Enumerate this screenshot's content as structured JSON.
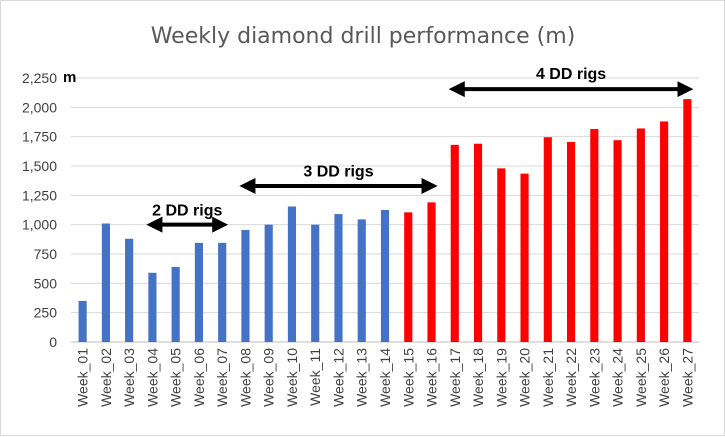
{
  "chart_data": {
    "type": "bar",
    "title": "Weekly diamond drill performance (m)",
    "y_unit_label": "m",
    "ylim": [
      0,
      2250
    ],
    "yticks": [
      0,
      250,
      500,
      750,
      1000,
      1250,
      1500,
      1750,
      2000,
      2250
    ],
    "ytick_labels": [
      "0",
      "250",
      "500",
      "750",
      "1,000",
      "1,250",
      "1,500",
      "1,750",
      "2,000",
      "2,250"
    ],
    "grid": true,
    "categories": [
      "Week_01",
      "Week_02",
      "Week_03",
      "Week_04",
      "Week_05",
      "Week_06",
      "Week_07",
      "Week_08",
      "Week_09",
      "Week_10",
      "Week_11",
      "Week_12",
      "Week_13",
      "Week_14",
      "Week_15",
      "Week_16",
      "Week_17",
      "Week_18",
      "Week_19",
      "Week_20",
      "Week_21",
      "Week_22",
      "Week_23",
      "Week_24",
      "Week_25",
      "Week_26",
      "Week_27"
    ],
    "values": [
      350,
      1010,
      880,
      590,
      640,
      845,
      845,
      955,
      1000,
      1155,
      1000,
      1090,
      1045,
      1125,
      1105,
      1190,
      1680,
      1690,
      1480,
      1435,
      1745,
      1705,
      1815,
      1720,
      1820,
      1880,
      2070
    ],
    "bar_colors": [
      "#4472c4",
      "#4472c4",
      "#4472c4",
      "#4472c4",
      "#4472c4",
      "#4472c4",
      "#4472c4",
      "#4472c4",
      "#4472c4",
      "#4472c4",
      "#4472c4",
      "#4472c4",
      "#4472c4",
      "#4472c4",
      "#ff0000",
      "#ff0000",
      "#ff0000",
      "#ff0000",
      "#ff0000",
      "#ff0000",
      "#ff0000",
      "#ff0000",
      "#ff0000",
      "#ff0000",
      "#ff0000",
      "#ff0000",
      "#ff0000"
    ],
    "annotations": [
      {
        "text": "2 DD rigs",
        "from": "Week_04",
        "to": "Week_07",
        "arrow_y": 1000,
        "text_y": 1080
      },
      {
        "text": "3 DD rigs",
        "from": "Week_08",
        "to": "Week_16",
        "arrow_y": 1330,
        "text_y": 1410
      },
      {
        "text": "4 DD rigs",
        "from": "Week_17",
        "to": "Week_27",
        "arrow_y": 2155,
        "text_y": 2240
      }
    ]
  }
}
